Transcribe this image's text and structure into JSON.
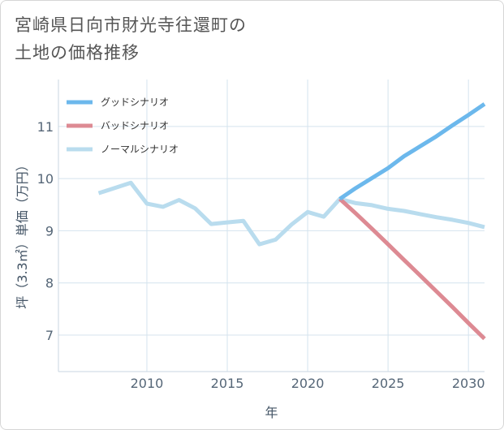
{
  "chart_data": {
    "type": "line",
    "title_lines": [
      "宮崎県日向市財光寺往還町の",
      "土地の価格推移"
    ],
    "xlabel": "年",
    "ylabel": "坪（3.3㎡）単価（万円）",
    "xlim": [
      2004.5,
      2031
    ],
    "ylim": [
      6.3,
      11.9
    ],
    "x_ticks": [
      2010,
      2015,
      2020,
      2025,
      2030
    ],
    "y_ticks": [
      7,
      8,
      9,
      10,
      11
    ],
    "grid": true,
    "legend_position": "top-left",
    "series": [
      {
        "name": "グッドシナリオ",
        "color": "#6cb8ec",
        "x": [
          2022,
          2023,
          2024,
          2025,
          2026,
          2027,
          2028,
          2029,
          2030,
          2031
        ],
        "y": [
          9.61,
          9.82,
          10.01,
          10.2,
          10.43,
          10.62,
          10.81,
          11.02,
          11.22,
          11.43
        ]
      },
      {
        "name": "バッドシナリオ",
        "color": "#dd8a93",
        "x": [
          2022,
          2023,
          2024,
          2025,
          2026,
          2027,
          2028,
          2029,
          2030,
          2031
        ],
        "y": [
          9.61,
          9.33,
          9.04,
          8.74,
          8.44,
          8.14,
          7.84,
          7.54,
          7.23,
          6.93
        ]
      },
      {
        "name": "ノーマルシナリオ",
        "color": "#b9dcee",
        "x": [
          2007,
          2008,
          2009,
          2010,
          2011,
          2012,
          2013,
          2014,
          2015,
          2016,
          2017,
          2018,
          2019,
          2020,
          2021,
          2022,
          2023,
          2024,
          2025,
          2026,
          2027,
          2028,
          2029,
          2030,
          2031
        ],
        "y": [
          9.72,
          9.82,
          9.92,
          9.52,
          9.46,
          9.59,
          9.43,
          9.13,
          9.16,
          9.19,
          8.74,
          8.83,
          9.12,
          9.36,
          9.27,
          9.61,
          9.53,
          9.49,
          9.42,
          9.38,
          9.32,
          9.26,
          9.21,
          9.15,
          9.07
        ]
      }
    ]
  }
}
